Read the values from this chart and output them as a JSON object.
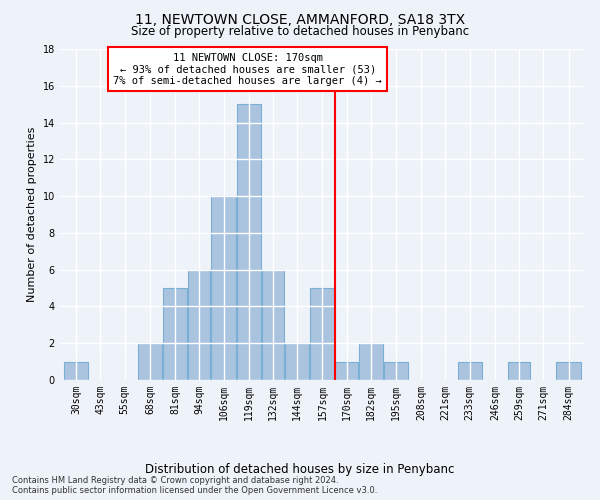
{
  "title": "11, NEWTOWN CLOSE, AMMANFORD, SA18 3TX",
  "subtitle": "Size of property relative to detached houses in Penybanc",
  "xlabel": "Distribution of detached houses by size in Penybanc",
  "ylabel": "Number of detached properties",
  "bin_labels": [
    "30sqm",
    "43sqm",
    "55sqm",
    "68sqm",
    "81sqm",
    "94sqm",
    "106sqm",
    "119sqm",
    "132sqm",
    "144sqm",
    "157sqm",
    "170sqm",
    "182sqm",
    "195sqm",
    "208sqm",
    "221sqm",
    "233sqm",
    "246sqm",
    "259sqm",
    "271sqm",
    "284sqm"
  ],
  "bin_edges": [
    30,
    43,
    55,
    68,
    81,
    94,
    106,
    119,
    132,
    144,
    157,
    170,
    182,
    195,
    208,
    221,
    233,
    246,
    259,
    271,
    284,
    297
  ],
  "values": [
    1,
    0,
    0,
    2,
    5,
    6,
    10,
    15,
    6,
    2,
    5,
    1,
    2,
    1,
    0,
    0,
    1,
    0,
    1,
    0,
    1
  ],
  "bar_color": "#aac4e0",
  "bar_edge_color": "#7aafd4",
  "reference_line_x": 170,
  "reference_line_color": "red",
  "annotation_text": "11 NEWTOWN CLOSE: 170sqm\n← 93% of detached houses are smaller (53)\n7% of semi-detached houses are larger (4) →",
  "annotation_box_color": "white",
  "annotation_box_edge": "red",
  "ylim": [
    0,
    18
  ],
  "yticks": [
    0,
    2,
    4,
    6,
    8,
    10,
    12,
    14,
    16,
    18
  ],
  "background_color": "#eef2f9",
  "grid_color": "white",
  "footer": "Contains HM Land Registry data © Crown copyright and database right 2024.\nContains public sector information licensed under the Open Government Licence v3.0."
}
